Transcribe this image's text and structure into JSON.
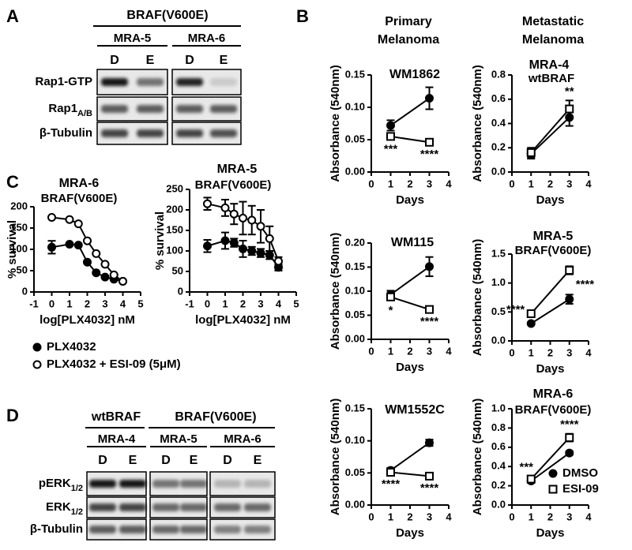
{
  "panel_labels": [
    "A",
    "B",
    "C",
    "D"
  ],
  "columns": [
    [
      "Primary",
      "Melanoma"
    ],
    [
      "Metastatic",
      "Melanoma"
    ]
  ],
  "blot_a": {
    "headers": [
      "BRAF(V600E)"
    ],
    "groups": [
      "MRA-5",
      "MRA-6"
    ],
    "lanes": [
      "D",
      "E",
      "D",
      "E"
    ],
    "rows": [
      {
        "text": "Rap1-GTP"
      },
      {
        "text": "Rap1",
        "sub": "A/B"
      },
      {
        "text": "β-Tubulin"
      }
    ]
  },
  "blot_d": {
    "headers": [
      "wtBRAF",
      "BRAF(V600E)"
    ],
    "groups": [
      "MRA-4",
      "MRA-5",
      "MRA-6"
    ],
    "lanes": [
      "D",
      "E",
      "D",
      "E",
      "D",
      "E"
    ],
    "rows": [
      {
        "text": "pERK",
        "sub": "1/2"
      },
      {
        "text": "ERK",
        "sub": "1/2"
      },
      {
        "text": "β-Tubulin"
      }
    ]
  },
  "chart_data": [
    {
      "type": "line",
      "title": "WM1862",
      "xlabel": "Days",
      "ylabel": "Absorbance (540nm)",
      "x": [
        1,
        3
      ],
      "xlim": [
        0,
        4
      ],
      "xticks": [
        0,
        1,
        2,
        3,
        4
      ],
      "ylim": [
        0,
        0.15
      ],
      "yticks": [
        {
          "value": 0,
          "label": "0.00"
        },
        0.05,
        {
          "value": 0.1,
          "label": "0.10"
        },
        0.15
      ],
      "series": [
        {
          "color": "#000",
          "marker": "circle",
          "filled": true,
          "values": [
            0.072,
            0.114
          ],
          "errors": [
            0.008,
            0.017
          ]
        },
        {
          "color": "#000",
          "marker": "square",
          "filled": false,
          "values": [
            0.055,
            0.046
          ],
          "errors": [
            0.003,
            0.002
          ]
        }
      ],
      "annotations": [
        {
          "text": "***",
          "x": 1,
          "position": "below"
        },
        {
          "text": "****",
          "x": 3,
          "position": "below"
        }
      ]
    },
    {
      "type": "line",
      "title": "MRA-4",
      "subtitle": "wtBRAF",
      "xlabel": "Days",
      "ylabel": "Absorbance (540nm)",
      "x": [
        1,
        3
      ],
      "xlim": [
        0,
        4
      ],
      "xticks": [
        0,
        1,
        2,
        3,
        4
      ],
      "ylim": [
        0,
        0.8
      ],
      "yticks": [
        {
          "value": 0,
          "label": "0.0"
        },
        0.2,
        0.4,
        0.6,
        0.8
      ],
      "series": [
        {
          "color": "#000",
          "marker": "circle",
          "filled": true,
          "values": [
            0.15,
            0.45
          ],
          "errors": [
            0.04,
            0.07
          ]
        },
        {
          "color": "#000",
          "marker": "square",
          "filled": false,
          "values": [
            0.16,
            0.52
          ],
          "errors": [
            0.04,
            0.07
          ]
        }
      ],
      "annotations": [
        {
          "text": "**",
          "x": 3,
          "position": "above"
        }
      ]
    },
    {
      "type": "line",
      "title": "WM115",
      "xlabel": "Days",
      "ylabel": "Absorbance (540nm)",
      "x": [
        1,
        3
      ],
      "xlim": [
        0,
        4
      ],
      "xticks": [
        0,
        1,
        2,
        3,
        4
      ],
      "ylim": [
        0,
        0.2
      ],
      "yticks": [
        {
          "value": 0,
          "label": "0.00"
        },
        0.05,
        {
          "value": 0.1,
          "label": "0.10"
        },
        0.15,
        {
          "value": 0.2,
          "label": "0.20"
        }
      ],
      "series": [
        {
          "color": "#000",
          "marker": "circle",
          "filled": true,
          "values": [
            0.093,
            0.151
          ],
          "errors": [
            0.008,
            0.02
          ]
        },
        {
          "color": "#000",
          "marker": "square",
          "filled": false,
          "values": [
            0.088,
            0.062
          ],
          "errors": [
            0.006,
            0.003
          ]
        }
      ],
      "annotations": [
        {
          "text": "*",
          "x": 1,
          "position": "below"
        },
        {
          "text": "****",
          "x": 3,
          "position": "below"
        }
      ]
    },
    {
      "type": "line",
      "title": "MRA-5",
      "subtitle": "BRAF(V600E)",
      "xlabel": "Days",
      "ylabel": "Absorbance (540nm)",
      "x": [
        1,
        3
      ],
      "xlim": [
        0,
        4
      ],
      "xticks": [
        0,
        1,
        2,
        3,
        4
      ],
      "ylim": [
        0,
        1.5
      ],
      "yticks": [
        {
          "value": 0,
          "label": "0.0"
        },
        0.5,
        {
          "value": 1,
          "label": "1.0"
        },
        1.5
      ],
      "series": [
        {
          "color": "#000",
          "marker": "circle",
          "filled": true,
          "values": [
            0.3,
            0.72
          ],
          "errors": [
            0.02,
            0.08
          ]
        },
        {
          "color": "#000",
          "marker": "square",
          "filled": false,
          "values": [
            0.47,
            1.22
          ],
          "errors": [
            0.04,
            0.07
          ]
        }
      ],
      "annotations": [
        {
          "text": "****",
          "x": 1,
          "position": "left"
        },
        {
          "text": "****",
          "x": 3,
          "position": "right"
        }
      ]
    },
    {
      "type": "line",
      "title": "WM1552C",
      "xlabel": "Days",
      "ylabel": "Absorbance (540nm)",
      "x": [
        1,
        3
      ],
      "xlim": [
        0,
        4
      ],
      "xticks": [
        0,
        1,
        2,
        3,
        4
      ],
      "ylim": [
        0,
        0.15
      ],
      "yticks": [
        {
          "value": 0,
          "label": "0.00"
        },
        0.05,
        {
          "value": 0.1,
          "label": "0.10"
        },
        0.15
      ],
      "series": [
        {
          "color": "#000",
          "marker": "circle",
          "filled": true,
          "values": [
            0.054,
            0.097
          ],
          "errors": [
            0.004,
            0.005
          ]
        },
        {
          "color": "#000",
          "marker": "square",
          "filled": false,
          "values": [
            0.051,
            0.045
          ],
          "errors": [
            0.002,
            0.002
          ]
        }
      ],
      "annotations": [
        {
          "text": "****",
          "x": 1,
          "position": "below"
        },
        {
          "text": "****",
          "x": 3,
          "position": "below"
        }
      ]
    },
    {
      "type": "line",
      "title": "MRA-6",
      "subtitle": "BRAF(V600E)",
      "xlabel": "Days",
      "ylabel": "Absorbance (540nm)",
      "x": [
        1,
        3
      ],
      "xlim": [
        0,
        4
      ],
      "xticks": [
        0,
        1,
        2,
        3,
        4
      ],
      "ylim": [
        0,
        1
      ],
      "yticks": [
        {
          "value": 0,
          "label": "0.0"
        },
        0.2,
        0.4,
        0.6,
        0.8,
        {
          "value": 1,
          "label": "1.0"
        }
      ],
      "legend": "lower right",
      "series": [
        {
          "name": "DMSO",
          "color": "#000",
          "marker": "circle",
          "filled": true,
          "values": [
            0.25,
            0.54
          ],
          "errors": [
            0.02,
            0.02
          ]
        },
        {
          "name": "ESI-09",
          "color": "#000",
          "marker": "square",
          "filled": false,
          "values": [
            0.27,
            0.7
          ],
          "errors": [
            0.03,
            0.04
          ]
        }
      ],
      "annotations": [
        {
          "text": "***",
          "x": 1,
          "position": "above"
        },
        {
          "text": "****",
          "x": 3,
          "position": "above"
        }
      ]
    },
    {
      "type": "line",
      "title": "MRA-6",
      "subtitle": "BRAF(V600E)",
      "xlabel": "log[PLX4032] nM",
      "ylabel": "% survival",
      "x": [
        0,
        1,
        1.5,
        2,
        2.5,
        3,
        3.5,
        4
      ],
      "xlim": [
        -1,
        5
      ],
      "xticks": [
        -1,
        0,
        1,
        2,
        3,
        4,
        5
      ],
      "ylim": [
        0,
        200
      ],
      "yticks": [
        0,
        50,
        100,
        150,
        200
      ],
      "legend": "below",
      "series": [
        {
          "name": "PLX4032",
          "color": "#000",
          "marker": "circle",
          "filled": true,
          "values": [
            105,
            112,
            110,
            70,
            45,
            35,
            30,
            25
          ],
          "errors": [
            15,
            0,
            0,
            0,
            0,
            0,
            0,
            0
          ]
        },
        {
          "name": "PLX4032 + ESI-09 (5μM)",
          "color": "#000",
          "marker": "circle",
          "filled": false,
          "values": [
            175,
            170,
            160,
            120,
            90,
            65,
            40,
            25
          ],
          "errors": [
            0,
            0,
            0,
            0,
            0,
            0,
            0,
            0
          ]
        }
      ]
    },
    {
      "type": "line",
      "title": "MRA-5",
      "subtitle": "BRAF(V600E)",
      "xlabel": "log[PLX4032] nM",
      "ylabel": "% survival",
      "x": [
        0,
        1,
        1.5,
        2,
        2.5,
        3,
        3.5,
        4
      ],
      "xlim": [
        -1,
        5
      ],
      "xticks": [
        -1,
        0,
        1,
        2,
        3,
        4,
        5
      ],
      "ylim": [
        0,
        250
      ],
      "yticks": [
        0,
        50,
        100,
        150,
        200,
        250
      ],
      "series": [
        {
          "color": "#000",
          "marker": "circle",
          "filled": true,
          "values": [
            112,
            125,
            120,
            105,
            100,
            95,
            90,
            60
          ],
          "errors": [
            15,
            20,
            10,
            20,
            10,
            10,
            10,
            8
          ]
        },
        {
          "color": "#000",
          "marker": "circle",
          "filled": false,
          "values": [
            215,
            205,
            190,
            180,
            175,
            160,
            130,
            75
          ],
          "errors": [
            15,
            20,
            25,
            40,
            35,
            40,
            30,
            10
          ]
        }
      ]
    }
  ]
}
